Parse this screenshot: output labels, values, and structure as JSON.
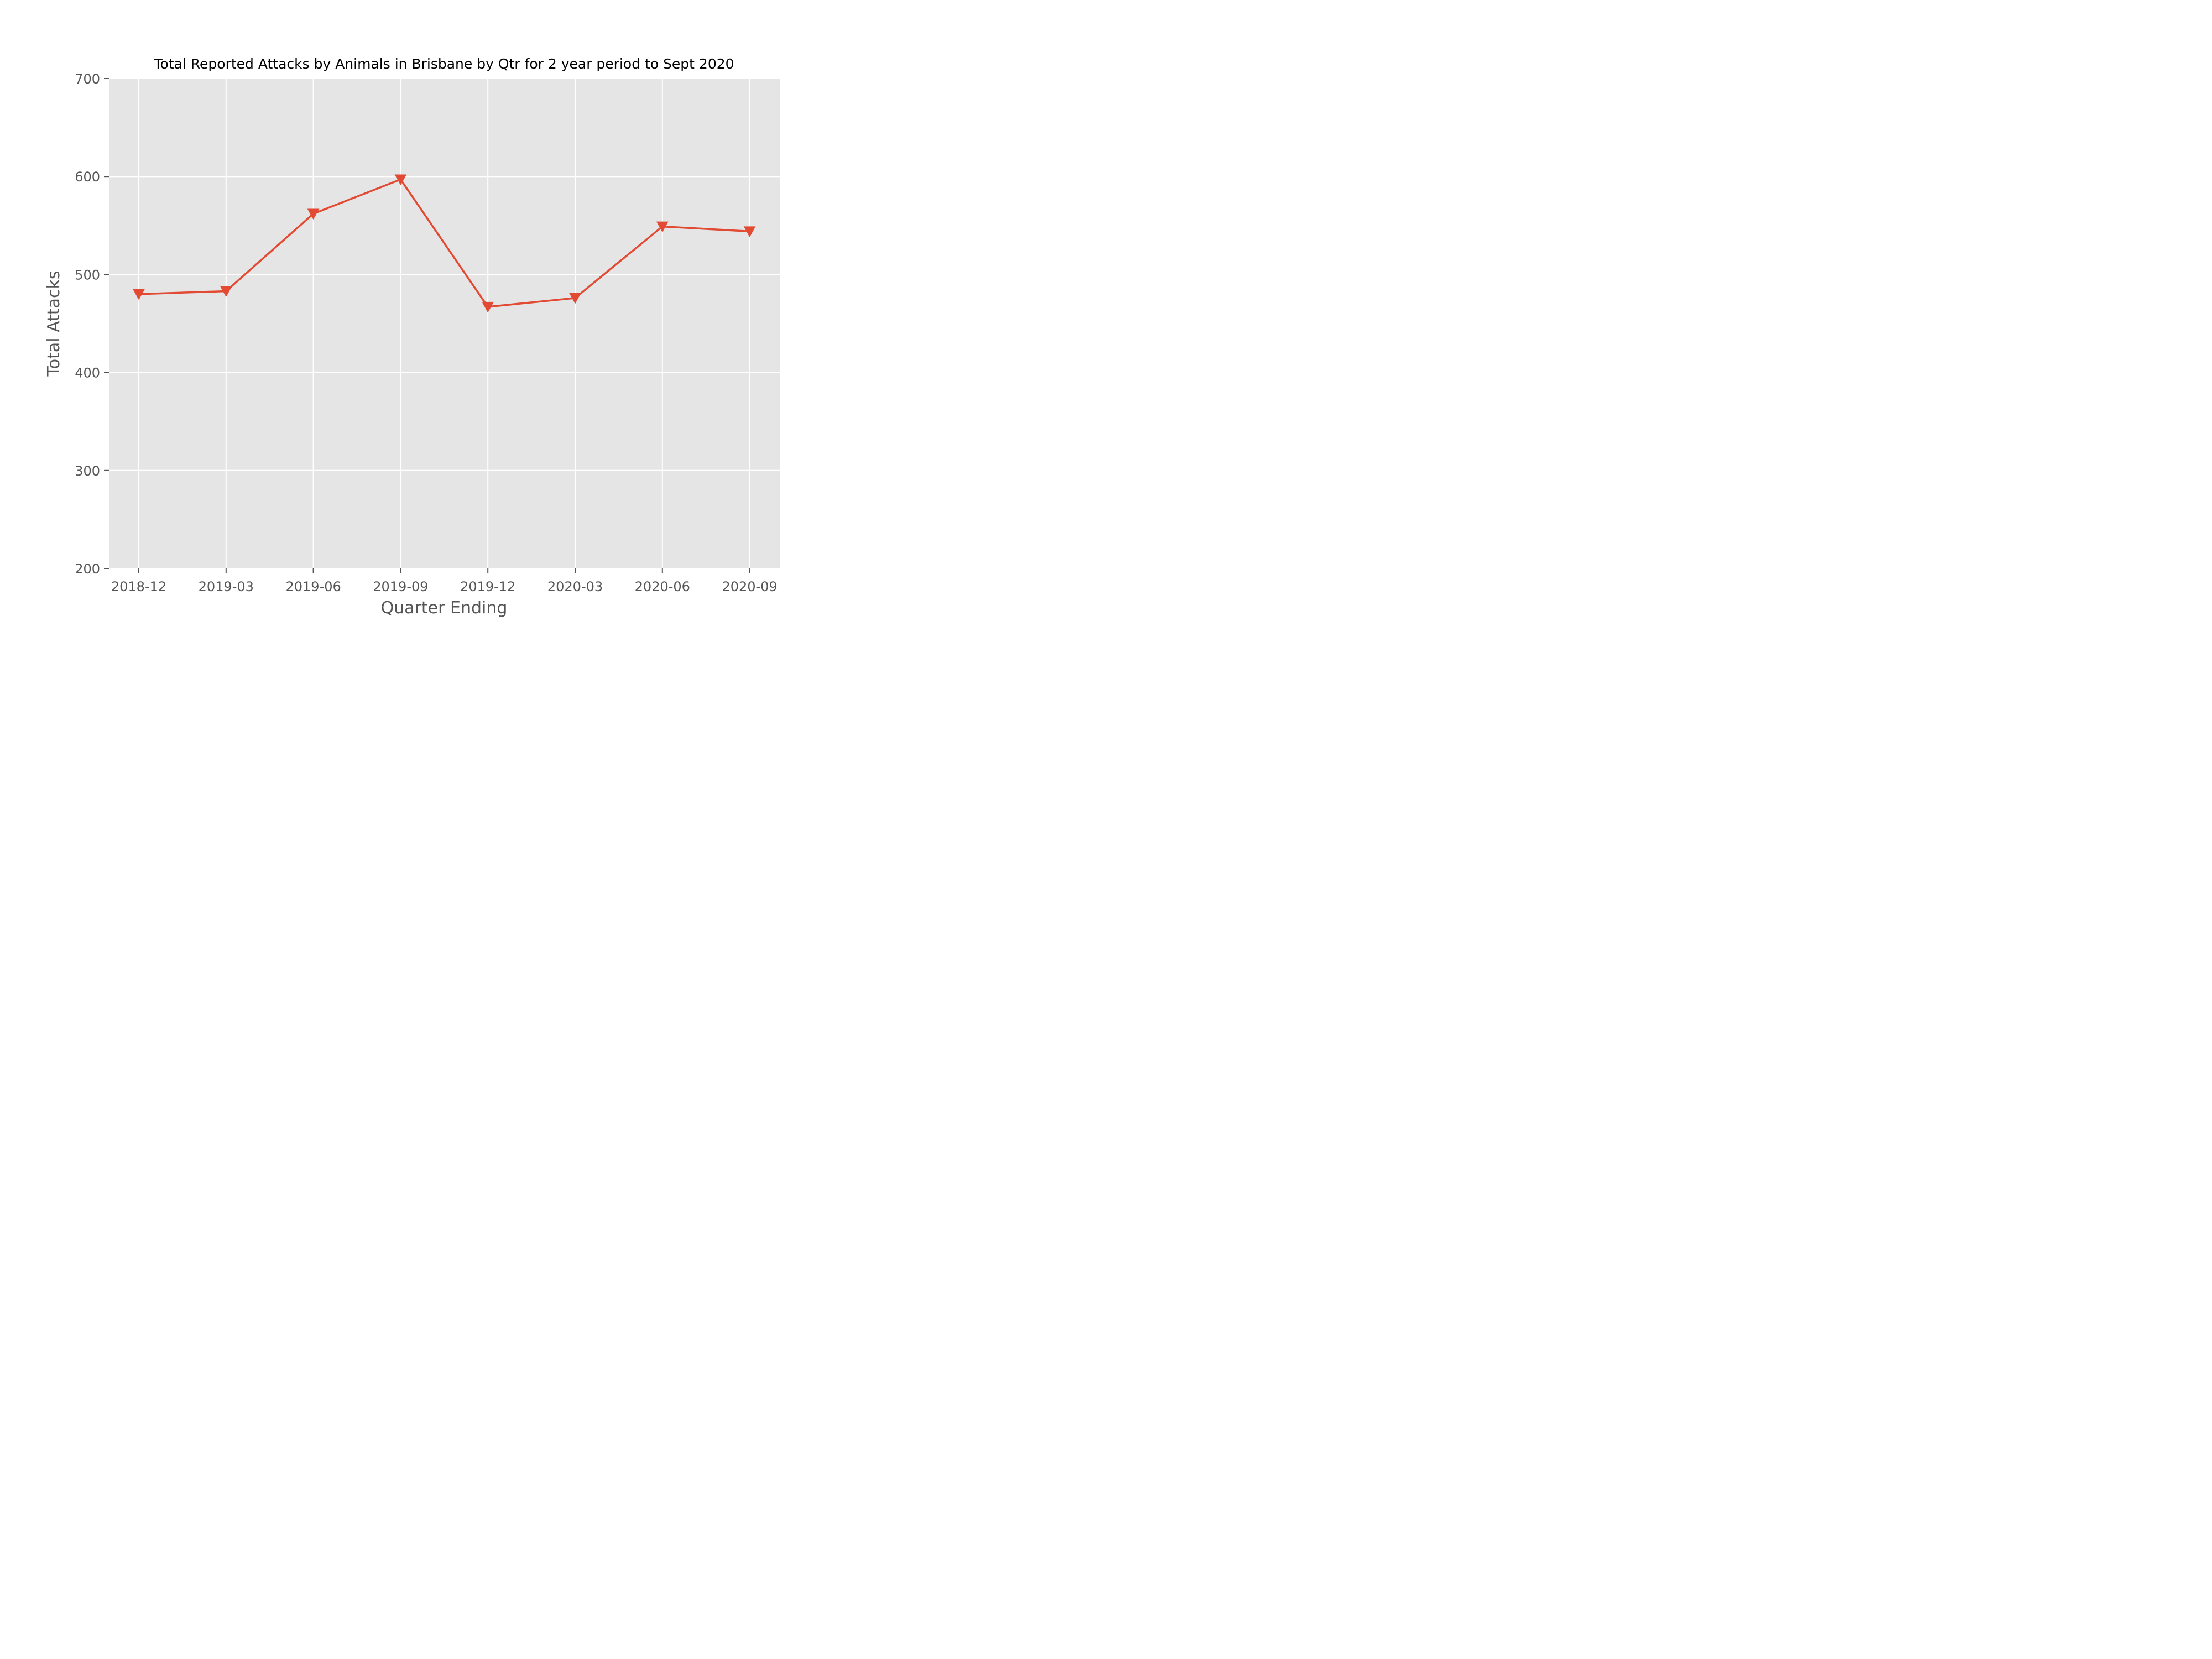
{
  "chart_data": {
    "type": "line",
    "title": "Total Reported Attacks by Animals in Brisbane by Qtr for 2 year period to Sept 2020",
    "xlabel": "Quarter Ending",
    "ylabel": "Total Attacks",
    "categories": [
      "2018-12",
      "2019-03",
      "2019-06",
      "2019-09",
      "2019-12",
      "2020-03",
      "2020-06",
      "2020-09"
    ],
    "series": [
      {
        "values": [
          480,
          483,
          562,
          597,
          467,
          476,
          549,
          544
        ],
        "color": "#e24a33",
        "marker": "triangle-down"
      }
    ],
    "ylim": [
      200,
      700
    ],
    "yticks": [
      200,
      300,
      400,
      500,
      600,
      700
    ],
    "grid": true,
    "plot_background": "#e5e5e5",
    "grid_color": "#ffffff"
  }
}
